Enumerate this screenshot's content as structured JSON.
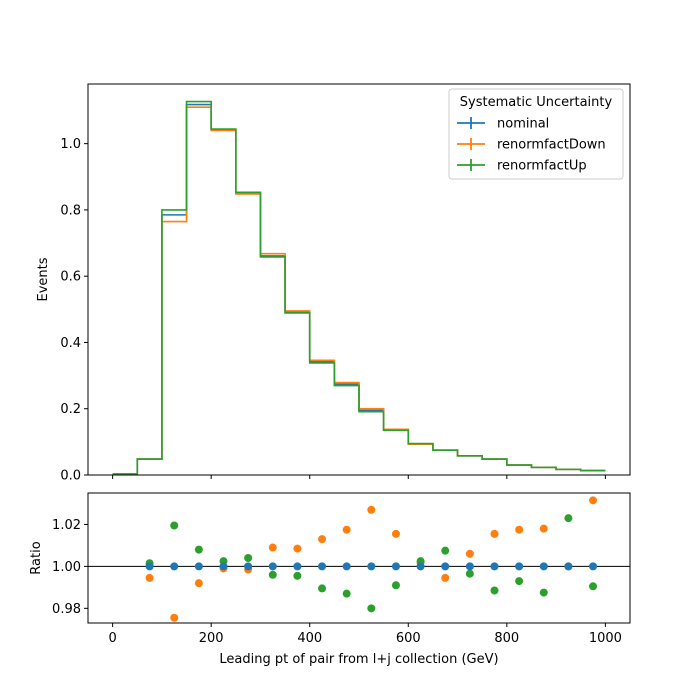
{
  "chart_data": {
    "type": "step-histogram-with-ratio",
    "bin_edges": [
      0,
      50,
      100,
      150,
      200,
      250,
      300,
      350,
      400,
      450,
      500,
      550,
      600,
      650,
      700,
      750,
      800,
      850,
      900,
      950,
      1000
    ],
    "bin_centers": [
      25,
      75,
      125,
      175,
      225,
      275,
      325,
      375,
      425,
      475,
      525,
      575,
      625,
      675,
      725,
      775,
      825,
      875,
      925,
      975
    ],
    "xlabel": "Leading pt of pair from l+j collection (GeV)",
    "top": {
      "ylabel": "Events",
      "ylim": [
        0,
        1.18
      ],
      "yticks": [
        "0.0",
        "0.2",
        "0.4",
        "0.6",
        "0.8",
        "1.0"
      ],
      "ytick_values": [
        0.0,
        0.2,
        0.4,
        0.6,
        0.8,
        1.0
      ],
      "series": [
        {
          "name": "nominal",
          "color": "#1f77b4",
          "values": [
            0.003,
            0.048,
            0.785,
            1.118,
            1.042,
            0.85,
            0.661,
            0.491,
            0.342,
            0.274,
            0.195,
            0.136,
            0.093,
            0.075,
            0.058,
            0.048,
            0.03,
            0.023,
            0.017,
            0.013
          ]
        },
        {
          "name": "renormfactDown",
          "color": "#ff7f0e",
          "values": [
            0.003,
            0.048,
            0.765,
            1.11,
            1.04,
            0.848,
            0.668,
            0.495,
            0.346,
            0.279,
            0.2,
            0.138,
            0.093,
            0.075,
            0.058,
            0.048,
            0.03,
            0.023,
            0.017,
            0.014
          ]
        },
        {
          "name": "renormfactUp",
          "color": "#2ca02c",
          "values": [
            0.003,
            0.048,
            0.8,
            1.127,
            1.044,
            0.853,
            0.658,
            0.489,
            0.338,
            0.27,
            0.191,
            0.135,
            0.095,
            0.075,
            0.058,
            0.048,
            0.03,
            0.023,
            0.017,
            0.013
          ]
        }
      ]
    },
    "bottom": {
      "ylabel": "Ratio",
      "ylim": [
        0.973,
        1.035
      ],
      "yticks": [
        "0.98",
        "1.00",
        "1.02"
      ],
      "ytick_values": [
        0.98,
        1.0,
        1.02
      ],
      "reference_line": 1.0,
      "series": [
        {
          "name": "nominal",
          "color": "#1f77b4",
          "x": [
            75,
            125,
            175,
            225,
            275,
            325,
            375,
            425,
            475,
            525,
            575,
            625,
            675,
            725,
            775,
            825,
            875,
            925,
            975
          ],
          "values": [
            1.0,
            1.0,
            1.0,
            1.0,
            1.0,
            1.0,
            1.0,
            1.0,
            1.0,
            1.0,
            1.0,
            1.0,
            1.0,
            1.0,
            1.0,
            1.0,
            1.0,
            1.0,
            1.0
          ]
        },
        {
          "name": "renormfactDown",
          "color": "#ff7f0e",
          "x": [
            75,
            125,
            175,
            225,
            275,
            325,
            375,
            425,
            475,
            525,
            575,
            625,
            675,
            725,
            775,
            825,
            875,
            925,
            975
          ],
          "values": [
            0.9945,
            0.9755,
            0.992,
            0.999,
            0.9985,
            1.009,
            1.0085,
            1.013,
            1.0175,
            1.027,
            1.0155,
            1.002,
            0.9945,
            1.006,
            1.0155,
            1.0175,
            1.018,
            1.0,
            1.0315
          ]
        },
        {
          "name": "renormfactUp",
          "color": "#2ca02c",
          "x": [
            75,
            125,
            175,
            225,
            275,
            325,
            375,
            425,
            475,
            525,
            575,
            625,
            675,
            725,
            775,
            825,
            875,
            925,
            975
          ],
          "values": [
            1.0015,
            1.0195,
            1.008,
            1.0025,
            1.004,
            0.996,
            0.9955,
            0.9895,
            0.987,
            0.98,
            0.991,
            1.0025,
            1.0075,
            0.9965,
            0.9885,
            0.993,
            0.9875,
            1.023,
            0.9905
          ]
        }
      ]
    },
    "xlim": [
      -50,
      1050
    ],
    "xticks": [
      "0",
      "200",
      "400",
      "600",
      "800",
      "1000"
    ],
    "xtick_values": [
      0,
      200,
      400,
      600,
      800,
      1000
    ],
    "legend": {
      "title": "Systematic Uncertainty",
      "placement": "top-right",
      "entries": [
        "nominal",
        "renormfactDown",
        "renormfactUp"
      ]
    }
  }
}
